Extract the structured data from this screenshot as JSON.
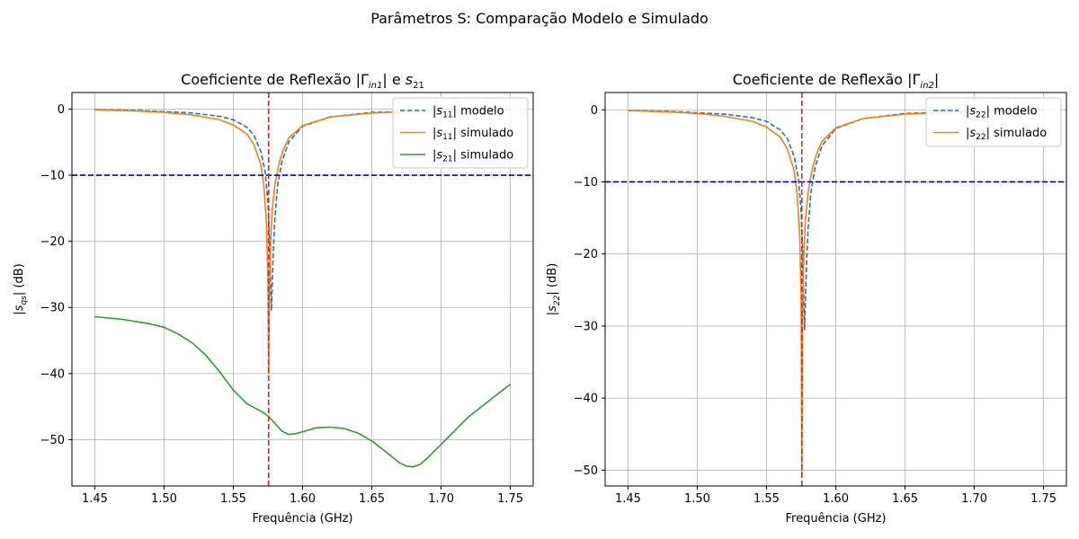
{
  "figure": {
    "suptitle": "Parâmetros S: Comparação Modelo e Simulado"
  },
  "colors": {
    "blue": "#1f77b4",
    "orange": "#ff7f0e",
    "green": "#2ca02c",
    "hline": "#0000cc",
    "vline": "#d62728",
    "grid": "#b0b0b0"
  },
  "chart_data": [
    {
      "type": "line",
      "title": {
        "prefix": "Coeficiente de Reflexão |Γ",
        "sub": "in1",
        "suffix": "| e s",
        "sub2": "21"
      },
      "xlabel": "Frequência (GHz)",
      "ylabel": "|s_qs| (dB)",
      "xlim": [
        1.4335,
        1.7665
      ],
      "ylim": [
        -57,
        2.5
      ],
      "xticks": [
        1.45,
        1.5,
        1.55,
        1.6,
        1.65,
        1.7,
        1.75
      ],
      "xtick_labels": [
        "1.45",
        "1.50",
        "1.55",
        "1.60",
        "1.65",
        "1.70",
        "1.75"
      ],
      "yticks": [
        0,
        -10,
        -20,
        -30,
        -40,
        -50
      ],
      "ytick_labels": [
        "0",
        "−10",
        "−20",
        "−30",
        "−40",
        "−50"
      ],
      "grid": true,
      "legend_position": "upper-right",
      "hline_y": -10,
      "vline_x": 1.5755,
      "series": [
        {
          "name": "|s11| modelo",
          "label_main": "|s",
          "label_sub": "11",
          "label_rest": "| modelo",
          "style": "dashed",
          "color_key": "blue",
          "x": [
            1.45,
            1.48,
            1.5,
            1.52,
            1.54,
            1.55,
            1.56,
            1.565,
            1.57,
            1.573,
            1.575,
            1.576,
            1.577,
            1.5775,
            1.578,
            1.579,
            1.58,
            1.582,
            1.585,
            1.59,
            1.6,
            1.62,
            1.65,
            1.7,
            1.75
          ],
          "y": [
            -0.1,
            -0.2,
            -0.4,
            -0.6,
            -1.1,
            -1.6,
            -2.8,
            -4.0,
            -6.5,
            -9.5,
            -14.0,
            -19.0,
            -27.0,
            -30.5,
            -27.0,
            -21.0,
            -16.5,
            -11.5,
            -8.0,
            -5.0,
            -2.6,
            -1.2,
            -0.5,
            -0.2,
            -0.1
          ]
        },
        {
          "name": "|s11| simulado",
          "label_main": "|s",
          "label_sub": "11",
          "label_rest": "| simulado",
          "style": "solid",
          "color_key": "orange",
          "x": [
            1.45,
            1.48,
            1.5,
            1.52,
            1.54,
            1.55,
            1.56,
            1.565,
            1.57,
            1.572,
            1.574,
            1.575,
            1.5755,
            1.576,
            1.577,
            1.578,
            1.58,
            1.583,
            1.586,
            1.59,
            1.6,
            1.62,
            1.65,
            1.7,
            1.75
          ],
          "y": [
            -0.1,
            -0.3,
            -0.5,
            -0.9,
            -1.6,
            -2.4,
            -3.8,
            -5.4,
            -8.5,
            -11.5,
            -17.5,
            -26.0,
            -40.0,
            -28.0,
            -20.0,
            -15.5,
            -11.5,
            -8.2,
            -6.2,
            -4.4,
            -2.5,
            -1.2,
            -0.6,
            -0.2,
            -0.1
          ]
        },
        {
          "name": "|s21| simulado",
          "label_main": "|s",
          "label_sub": "21",
          "label_rest": "| simulado",
          "style": "solid",
          "color_key": "green",
          "x": [
            1.45,
            1.47,
            1.49,
            1.5,
            1.51,
            1.52,
            1.53,
            1.54,
            1.55,
            1.56,
            1.57,
            1.575,
            1.58,
            1.585,
            1.59,
            1.595,
            1.6,
            1.61,
            1.62,
            1.63,
            1.64,
            1.65,
            1.66,
            1.67,
            1.675,
            1.68,
            1.685,
            1.69,
            1.7,
            1.72,
            1.75
          ],
          "y": [
            -31.4,
            -31.8,
            -32.5,
            -33.0,
            -34.0,
            -35.3,
            -37.2,
            -39.7,
            -42.5,
            -44.6,
            -45.7,
            -46.4,
            -47.5,
            -48.7,
            -49.2,
            -49.1,
            -48.8,
            -48.2,
            -48.1,
            -48.3,
            -49.0,
            -50.2,
            -51.8,
            -53.5,
            -54.0,
            -54.1,
            -53.7,
            -52.8,
            -50.7,
            -46.5,
            -41.6
          ]
        }
      ]
    },
    {
      "type": "line",
      "title": {
        "prefix": "Coeficiente de Reflexão |Γ",
        "sub": "in2",
        "suffix": "|",
        "sub2": ""
      },
      "xlabel": "Frequência (GHz)",
      "ylabel": "|s_22| (dB)",
      "xlim": [
        1.4335,
        1.7665
      ],
      "ylim": [
        -52.2,
        2.4
      ],
      "xticks": [
        1.45,
        1.5,
        1.55,
        1.6,
        1.65,
        1.7,
        1.75
      ],
      "xtick_labels": [
        "1.45",
        "1.50",
        "1.55",
        "1.60",
        "1.65",
        "1.70",
        "1.75"
      ],
      "yticks": [
        0,
        -10,
        -20,
        -30,
        -40,
        -50
      ],
      "ytick_labels": [
        "0",
        "−10",
        "−20",
        "−30",
        "−40",
        "−50"
      ],
      "grid": true,
      "legend_position": "upper-right",
      "hline_y": -10,
      "vline_x": 1.5755,
      "series": [
        {
          "name": "|s22| modelo",
          "label_main": "|s",
          "label_sub": "22",
          "label_rest": "| modelo",
          "style": "dashed",
          "color_key": "blue",
          "x": [
            1.45,
            1.48,
            1.5,
            1.52,
            1.54,
            1.55,
            1.56,
            1.565,
            1.57,
            1.573,
            1.575,
            1.576,
            1.577,
            1.5775,
            1.578,
            1.579,
            1.58,
            1.582,
            1.585,
            1.59,
            1.6,
            1.62,
            1.65,
            1.7,
            1.75
          ],
          "y": [
            -0.1,
            -0.2,
            -0.4,
            -0.6,
            -1.1,
            -1.6,
            -2.8,
            -4.0,
            -6.5,
            -9.5,
            -14.0,
            -19.0,
            -27.0,
            -30.5,
            -27.0,
            -21.0,
            -16.5,
            -11.5,
            -8.0,
            -5.0,
            -2.6,
            -1.2,
            -0.5,
            -0.2,
            -0.1
          ]
        },
        {
          "name": "|s22| simulado",
          "label_main": "|s",
          "label_sub": "22",
          "label_rest": "| simulado",
          "style": "solid",
          "color_key": "orange",
          "x": [
            1.45,
            1.48,
            1.5,
            1.52,
            1.54,
            1.55,
            1.56,
            1.565,
            1.57,
            1.572,
            1.574,
            1.575,
            1.5755,
            1.576,
            1.577,
            1.578,
            1.58,
            1.583,
            1.586,
            1.59,
            1.6,
            1.62,
            1.65,
            1.7,
            1.75
          ],
          "y": [
            -0.1,
            -0.3,
            -0.5,
            -0.9,
            -1.6,
            -2.4,
            -3.8,
            -5.4,
            -8.5,
            -11.5,
            -17.5,
            -26.0,
            -51.0,
            -28.0,
            -20.0,
            -15.5,
            -11.5,
            -8.2,
            -6.2,
            -4.4,
            -2.5,
            -1.2,
            -0.6,
            -0.2,
            -0.1
          ]
        }
      ]
    }
  ]
}
